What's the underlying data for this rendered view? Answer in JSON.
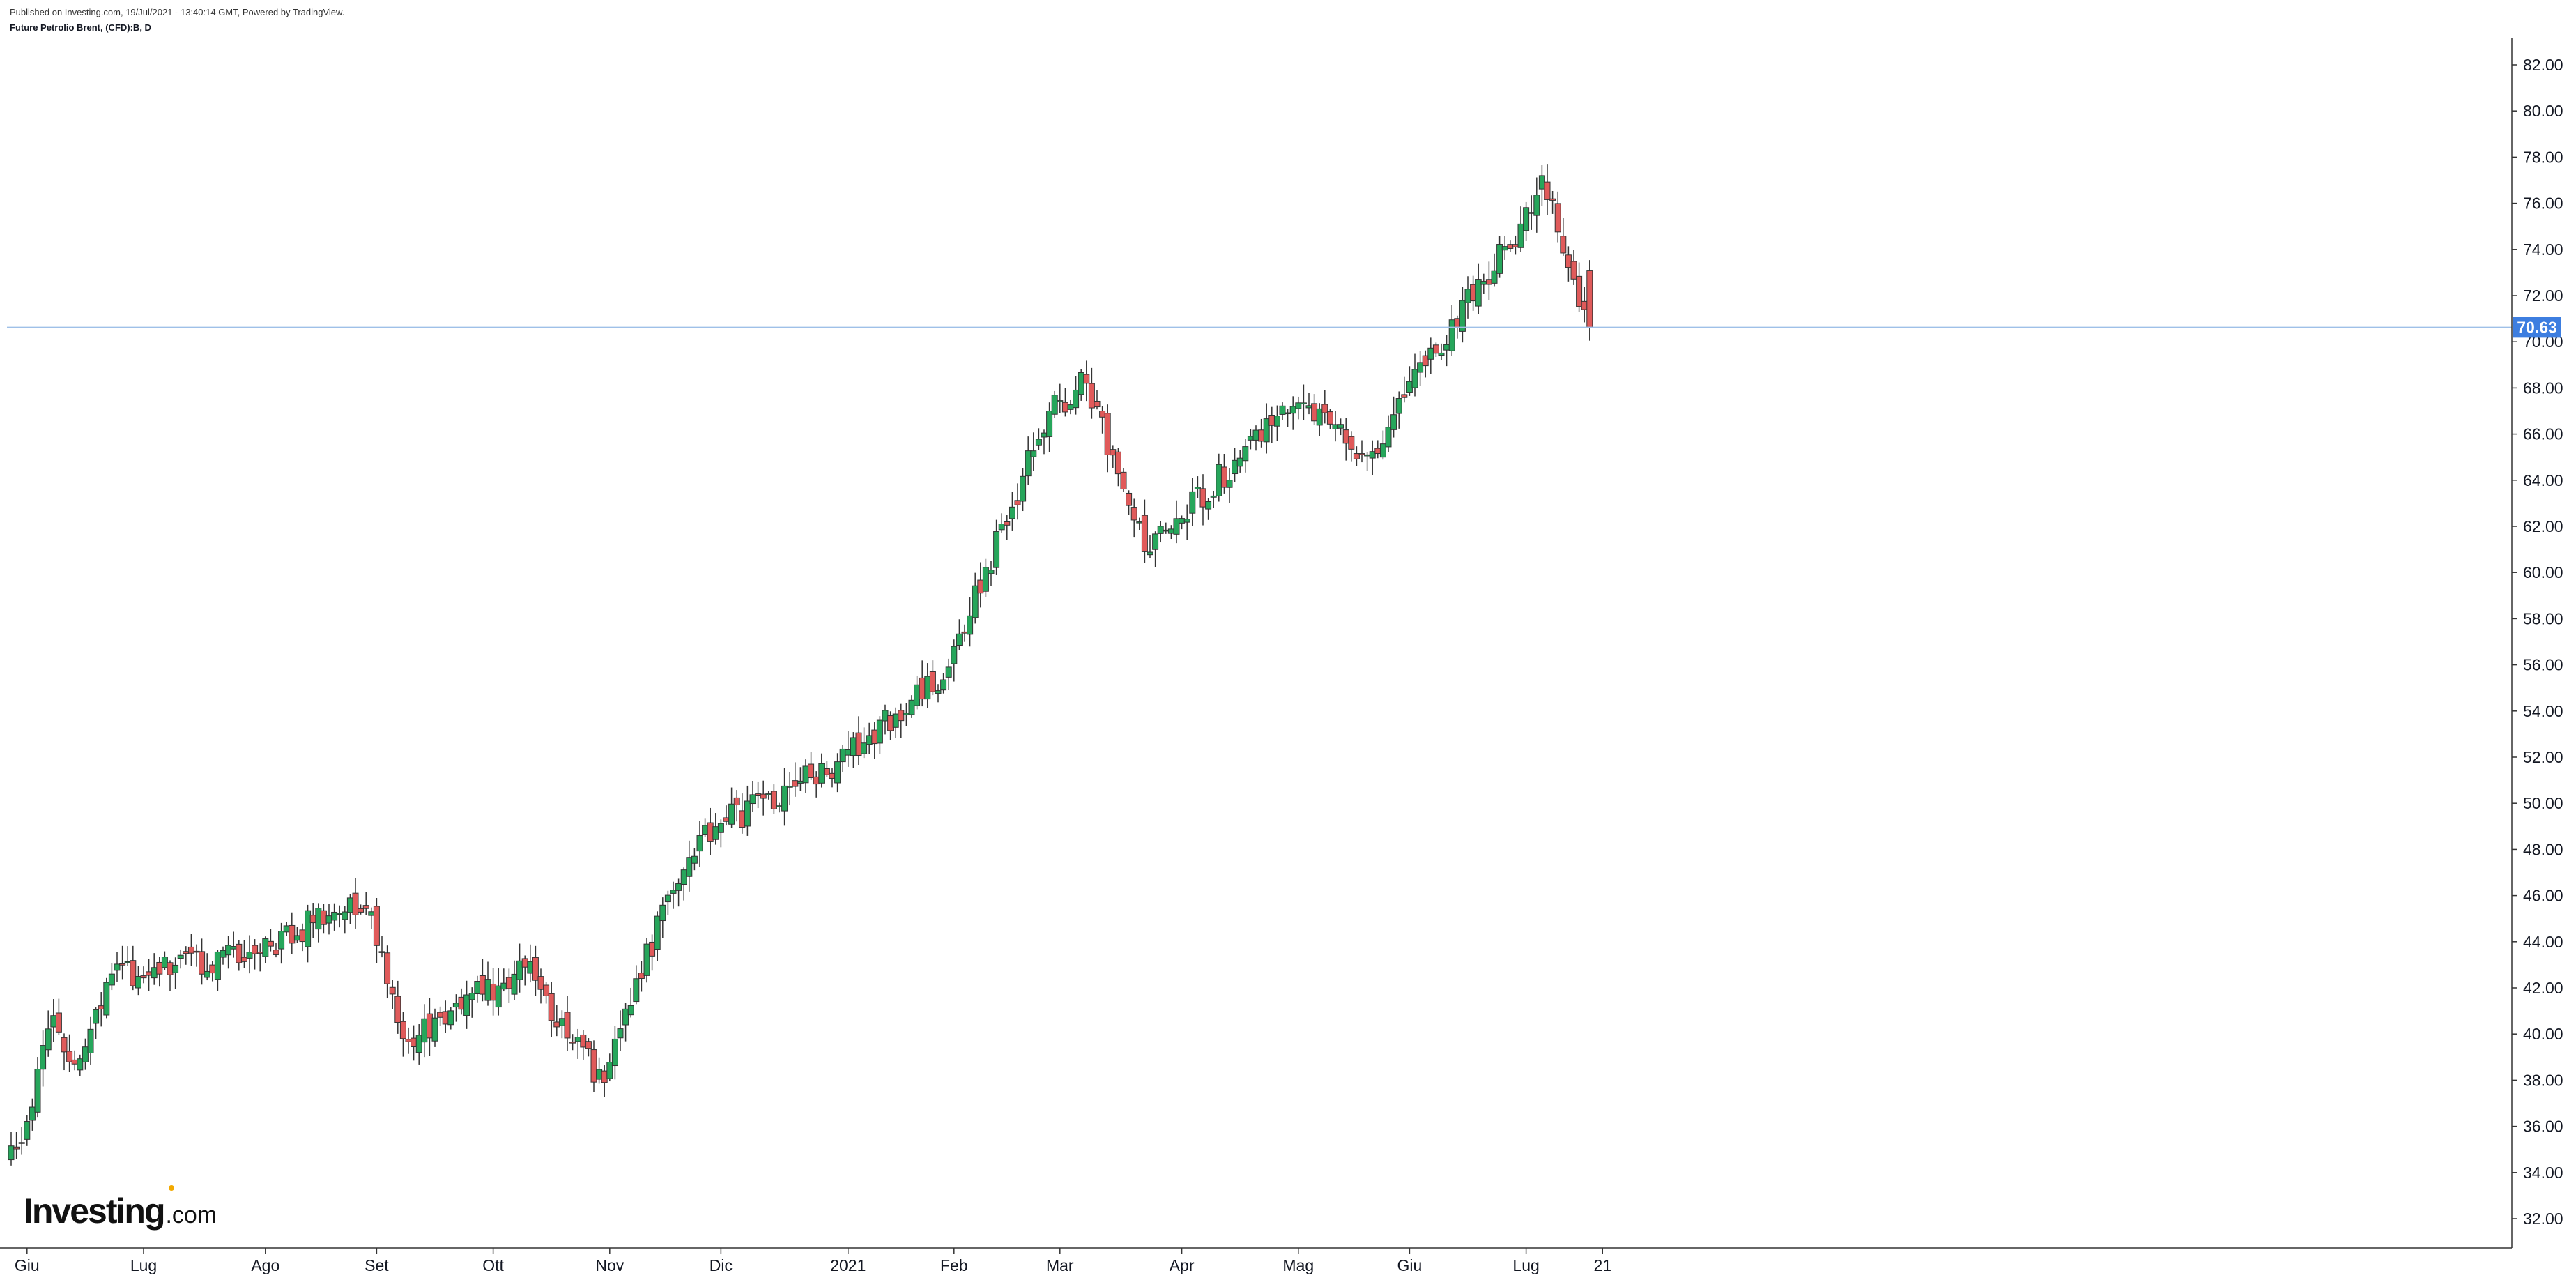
{
  "header": {
    "published": "Published on Investing.com, 19/Jul/2021 - 13:40:14 GMT, Powered by TradingView.",
    "title": "Future Petrolio Brent, (CFD):B, D"
  },
  "logo": {
    "main": "Investing",
    "suffix": ".com"
  },
  "chart_data": {
    "type": "candlestick",
    "title": "Future Petrolio Brent, (CFD):B, D",
    "interval": "D",
    "y_axis": {
      "position": "right",
      "range": [
        31.2,
        83.6
      ],
      "ticks": [
        32,
        34,
        36,
        38,
        40,
        42,
        44,
        46,
        48,
        50,
        52,
        54,
        56,
        58,
        60,
        62,
        64,
        66,
        68,
        70,
        72,
        74,
        76,
        78,
        80,
        82
      ],
      "tick_labels": [
        "32.00",
        "34.00",
        "36.00",
        "38.00",
        "40.00",
        "42.00",
        "44.00",
        "46.00",
        "48.00",
        "50.00",
        "52.00",
        "54.00",
        "56.00",
        "58.00",
        "60.00",
        "62.00",
        "64.00",
        "66.00",
        "68.00",
        "70.00",
        "72.00",
        "74.00",
        "76.00",
        "78.00",
        "80.00",
        "82.00"
      ]
    },
    "x_axis": {
      "labels": [
        {
          "label": "Giu",
          "date": "2020-06-01"
        },
        {
          "label": "Lug",
          "date": "2020-07-01"
        },
        {
          "label": "Ago",
          "date": "2020-08-03"
        },
        {
          "label": "Set",
          "date": "2020-09-01"
        },
        {
          "label": "Ott",
          "date": "2020-10-01"
        },
        {
          "label": "Nov",
          "date": "2020-11-02"
        },
        {
          "label": "Dic",
          "date": "2020-12-01"
        },
        {
          "label": "2021",
          "date": "2021-01-04"
        },
        {
          "label": "Feb",
          "date": "2021-02-01"
        },
        {
          "label": "Mar",
          "date": "2021-03-01"
        },
        {
          "label": "Apr",
          "date": "2021-04-01"
        },
        {
          "label": "Mag",
          "date": "2021-05-03"
        },
        {
          "label": "Giu",
          "date": "2021-06-01"
        },
        {
          "label": "Lug",
          "date": "2021-07-01"
        },
        {
          "label": "21",
          "date": "2021-07-21"
        }
      ]
    },
    "last_price": {
      "label": "70.63",
      "value": 70.63
    },
    "colors": {
      "up": "#26a65b",
      "down": "#e05a5a",
      "wick": "#333333",
      "last_price_line": "#9fc0e8",
      "last_price_badge": "#3d7ee0",
      "axis": "#333333"
    },
    "key_points": [
      {
        "date": "2020-05-29",
        "close": 35.3
      },
      {
        "date": "2020-06-08",
        "close": 40.8
      },
      {
        "date": "2020-06-12",
        "close": 38.7
      },
      {
        "date": "2020-06-23",
        "close": 42.6
      },
      {
        "date": "2020-07-31",
        "close": 43.5
      },
      {
        "date": "2020-08-25",
        "close": 45.9
      },
      {
        "date": "2020-08-31",
        "close": 45.3
      },
      {
        "date": "2020-09-08",
        "close": 39.8
      },
      {
        "date": "2020-10-09",
        "close": 42.9
      },
      {
        "date": "2020-10-30",
        "close": 37.9
      },
      {
        "date": "2020-11-09",
        "close": 42.4
      },
      {
        "date": "2020-11-25",
        "close": 48.6
      },
      {
        "date": "2020-12-31",
        "close": 51.8
      },
      {
        "date": "2021-01-29",
        "close": 55.9
      },
      {
        "date": "2021-02-25",
        "close": 67.0
      },
      {
        "date": "2021-03-08",
        "close": 68.2
      },
      {
        "date": "2021-03-23",
        "close": 60.9
      },
      {
        "date": "2021-04-30",
        "close": 67.2
      },
      {
        "date": "2021-05-20",
        "close": 65.1
      },
      {
        "date": "2021-06-30",
        "close": 75.1
      },
      {
        "date": "2021-07-06",
        "close": 77.2
      },
      {
        "date": "2021-07-19",
        "close": 70.6
      }
    ]
  }
}
